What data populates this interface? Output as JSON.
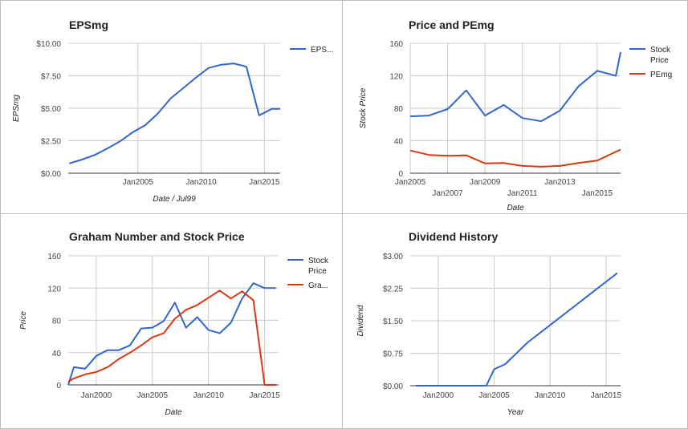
{
  "chart_data": [
    {
      "type": "line",
      "title": "EPSmg",
      "xlabel": "Date / Jul99",
      "ylabel": "EPSmg",
      "x_type": "date",
      "xlim": [
        "1999-07-01",
        "2016-04-01"
      ],
      "ylim": [
        0,
        10
      ],
      "x_ticks": [
        {
          "label": "Jan2005",
          "value": "2005-01-01"
        },
        {
          "label": "Jan2010",
          "value": "2010-01-01"
        },
        {
          "label": "Jan2015",
          "value": "2015-01-01"
        }
      ],
      "y_ticks": [
        {
          "label": "$0.00",
          "value": 0
        },
        {
          "label": "$2.50",
          "value": 2.5
        },
        {
          "label": "$5.00",
          "value": 5
        },
        {
          "label": "$7.50",
          "value": 7.5
        },
        {
          "label": "$10.00",
          "value": 10
        }
      ],
      "grid": true,
      "legend_position": "right",
      "series": [
        {
          "name": "EPS...",
          "color": "#3366cc",
          "x": [
            "1999-08-01",
            "2000-08-01",
            "2001-08-01",
            "2002-08-01",
            "2003-08-01",
            "2004-08-01",
            "2005-08-01",
            "2006-08-01",
            "2007-08-01",
            "2008-08-01",
            "2009-08-01",
            "2010-08-01",
            "2011-08-01",
            "2012-08-01",
            "2013-08-01",
            "2014-08-01",
            "2015-08-01",
            "2016-04-01"
          ],
          "values": [
            0.75,
            1.05,
            1.4,
            1.9,
            2.45,
            3.15,
            3.7,
            4.6,
            5.75,
            6.55,
            7.35,
            8.1,
            8.35,
            8.45,
            8.2,
            4.45,
            4.95,
            4.95
          ]
        }
      ]
    },
    {
      "type": "line",
      "title": "Price and PEmg",
      "xlabel": "Date",
      "ylabel": "Stock Price",
      "x_type": "date",
      "xlim": [
        "2005-01-01",
        "2016-04-01"
      ],
      "ylim": [
        0,
        160
      ],
      "x_ticks": [
        {
          "label": "Jan2005",
          "value": "2005-01-01",
          "row": 0
        },
        {
          "label": "Jan2007",
          "value": "2007-01-01",
          "row": 1
        },
        {
          "label": "Jan2009",
          "value": "2009-01-01",
          "row": 0
        },
        {
          "label": "Jan2011",
          "value": "2011-01-01",
          "row": 1
        },
        {
          "label": "Jan2013",
          "value": "2013-01-01",
          "row": 0
        },
        {
          "label": "Jan2015",
          "value": "2015-01-01",
          "row": 1
        }
      ],
      "y_ticks": [
        {
          "label": "0",
          "value": 0
        },
        {
          "label": "40",
          "value": 40
        },
        {
          "label": "80",
          "value": 80
        },
        {
          "label": "120",
          "value": 120
        },
        {
          "label": "160",
          "value": 160
        }
      ],
      "grid": true,
      "legend_position": "right",
      "series": [
        {
          "name": "Stock Price",
          "color": "#3366cc",
          "x": [
            "2005-01-01",
            "2006-01-01",
            "2007-01-01",
            "2008-01-01",
            "2009-01-01",
            "2010-01-01",
            "2011-01-01",
            "2012-01-01",
            "2013-01-01",
            "2014-01-01",
            "2015-01-01",
            "2016-01-01",
            "2016-04-01"
          ],
          "values": [
            70,
            71,
            79,
            102,
            71,
            84,
            68,
            64,
            77,
            107,
            126,
            120,
            149
          ]
        },
        {
          "name": "PEmg",
          "color": "#dc3912",
          "x": [
            "2005-01-01",
            "2006-01-01",
            "2007-01-01",
            "2008-01-01",
            "2009-01-01",
            "2010-01-01",
            "2011-01-01",
            "2012-01-01",
            "2013-01-01",
            "2014-01-01",
            "2015-01-01",
            "2016-01-01",
            "2016-04-01"
          ],
          "values": [
            28,
            22.5,
            21.5,
            22,
            12,
            12.5,
            9,
            8,
            9,
            12.5,
            15.5,
            26.5,
            29
          ]
        }
      ]
    },
    {
      "type": "line",
      "title": "Graham Number and Stock Price",
      "xlabel": "Date",
      "ylabel": "Price",
      "x_type": "date",
      "xlim": [
        "1997-07-01",
        "2016-04-01"
      ],
      "ylim": [
        0,
        160
      ],
      "x_ticks": [
        {
          "label": "Jan2000",
          "value": "2000-01-01"
        },
        {
          "label": "Jan2005",
          "value": "2005-01-01"
        },
        {
          "label": "Jan2010",
          "value": "2010-01-01"
        },
        {
          "label": "Jan2015",
          "value": "2015-01-01"
        }
      ],
      "y_ticks": [
        {
          "label": "0",
          "value": 0
        },
        {
          "label": "40",
          "value": 40
        },
        {
          "label": "80",
          "value": 80
        },
        {
          "label": "120",
          "value": 120
        },
        {
          "label": "160",
          "value": 160
        }
      ],
      "grid": true,
      "legend_position": "right",
      "series": [
        {
          "name": "Stock Price",
          "color": "#3366cc",
          "x": [
            "1997-07-01",
            "1998-01-01",
            "1999-01-01",
            "2000-01-01",
            "2001-01-01",
            "2002-01-01",
            "2003-01-01",
            "2004-01-01",
            "2005-01-01",
            "2006-01-01",
            "2007-01-01",
            "2008-01-01",
            "2009-01-01",
            "2010-01-01",
            "2011-01-01",
            "2012-01-01",
            "2013-01-01",
            "2014-01-01",
            "2015-01-01",
            "2016-01-01"
          ],
          "values": [
            0,
            22,
            20,
            36,
            43,
            43,
            49,
            70,
            71,
            79,
            102,
            71,
            84,
            68,
            64,
            77,
            107,
            126,
            120,
            120
          ]
        },
        {
          "name": "Gra...",
          "color": "#dc3912",
          "x": [
            "1997-07-01",
            "1998-01-01",
            "1999-01-01",
            "2000-01-01",
            "2001-01-01",
            "2002-01-01",
            "2003-01-01",
            "2004-01-01",
            "2005-01-01",
            "2006-01-01",
            "2007-01-01",
            "2008-01-01",
            "2009-01-01",
            "2010-01-01",
            "2011-01-01",
            "2012-01-01",
            "2013-01-01",
            "2014-01-01",
            "2015-01-01",
            "2016-01-01"
          ],
          "values": [
            4,
            8,
            13,
            16,
            22,
            32,
            40,
            49,
            59,
            64,
            82,
            93,
            99,
            108,
            117,
            107,
            116,
            105,
            0,
            0
          ]
        }
      ]
    },
    {
      "type": "line",
      "title": "Dividend History",
      "xlabel": "Year",
      "ylabel": "Dividend",
      "x_type": "number",
      "xlim": [
        1997.5,
        2016.3
      ],
      "ylim": [
        0,
        3
      ],
      "x_ticks": [
        {
          "label": "Jan2000",
          "value": 2000
        },
        {
          "label": "Jan2005",
          "value": 2005
        },
        {
          "label": "Jan2010",
          "value": 2010
        },
        {
          "label": "Jan2015",
          "value": 2015
        }
      ],
      "y_ticks": [
        {
          "label": "$0.00",
          "value": 0
        },
        {
          "label": "$0.75",
          "value": 0.75
        },
        {
          "label": "$1.50",
          "value": 1.5
        },
        {
          "label": "$2.25",
          "value": 2.25
        },
        {
          "label": "$3.00",
          "value": 3
        }
      ],
      "grid": true,
      "legend_position": "none",
      "series": [
        {
          "color": "#3366cc",
          "x": [
            1998,
            2004.3,
            2005,
            2006,
            2008,
            2010,
            2012,
            2014,
            2016
          ],
          "values": [
            0,
            0,
            0.38,
            0.5,
            1.0,
            1.4,
            1.8,
            2.2,
            2.6
          ]
        }
      ]
    }
  ]
}
